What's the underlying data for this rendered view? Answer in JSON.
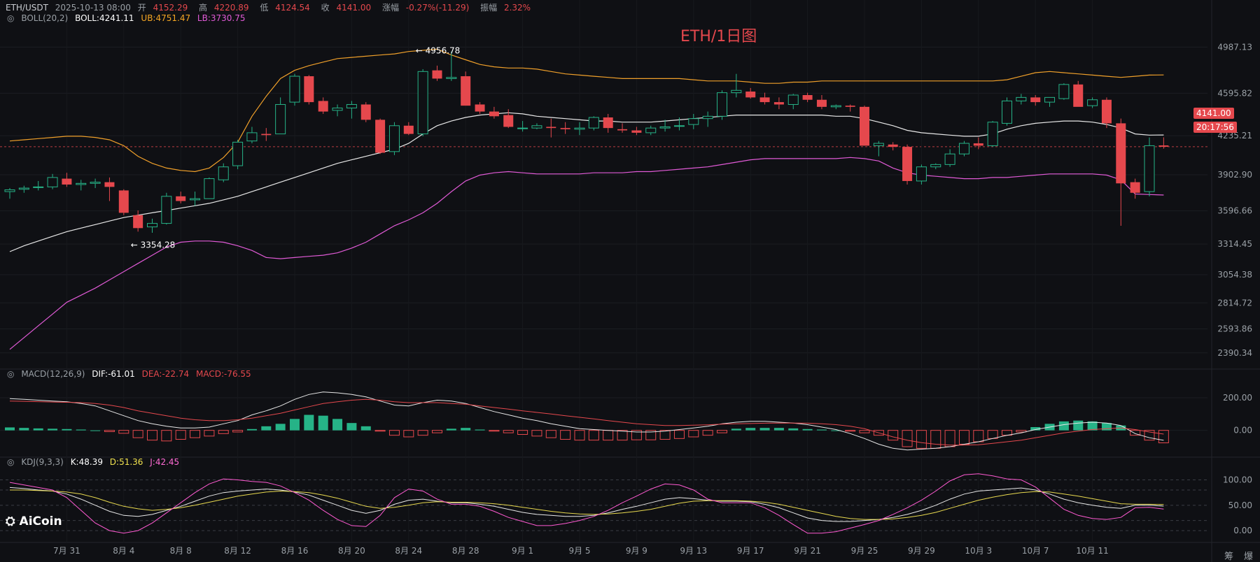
{
  "header": {
    "pair": "ETH/USDT",
    "datetime": "2025-10-13 08:00",
    "open_label": "开",
    "open": "4152.29",
    "high_label": "高",
    "high": "4220.89",
    "low_label": "低",
    "low": "4124.54",
    "close_label": "收",
    "close": "4141.00",
    "change_label": "涨幅",
    "change": "-0.27%(-11.29)",
    "amp_label": "振幅",
    "amp": "2.32%"
  },
  "boll": {
    "name": "BOLL(20,2)",
    "boll": "BOLL:4241.11",
    "ub": "UB:4751.47",
    "lb": "LB:3730.75"
  },
  "macd": {
    "name": "MACD(12,26,9)",
    "dif": "DIF:-61.01",
    "dea": "DEA:-22.74",
    "macd": "MACD:-76.55"
  },
  "kdj": {
    "name": "KDJ(9,3,3)",
    "k": "K:48.39",
    "d": "D:51.36",
    "j": "J:42.45"
  },
  "watermark": "ETH/1日图",
  "logo": "AiCoin",
  "price_tag": "4141.00",
  "countdown_tag": "20:17:56",
  "right_labels": [
    "筹",
    "爆"
  ],
  "colors": {
    "up": "#26b387",
    "down": "#e5484d",
    "boll_mid": "#e8e8e8",
    "boll_up": "#f0a02a",
    "boll_low": "#e05ad6",
    "dif": "#e8e8e8",
    "dea": "#e5484d",
    "k": "#e8e8e8",
    "d": "#e8d94f",
    "j": "#ff5ad2"
  },
  "chart_data": {
    "type": "candlestick",
    "interval": "1D",
    "price_axis": {
      "ticks": [
        "4987.13",
        "4595.82",
        "4235.21",
        "3902.90",
        "3596.66",
        "3314.45",
        "3054.38",
        "2814.72",
        "2593.86",
        "2390.34"
      ],
      "range": [
        2300,
        5150
      ]
    },
    "macd_axis": {
      "ticks": [
        "200.00",
        "0.00"
      ],
      "range": [
        -130,
        290
      ]
    },
    "kdj_axis": {
      "ticks": [
        "100.00",
        "50.00",
        "0.00"
      ],
      "range": [
        -15,
        120
      ]
    },
    "x_ticks": [
      {
        "i": 4,
        "label": "7月 31"
      },
      {
        "i": 8,
        "label": "8月 4"
      },
      {
        "i": 12,
        "label": "8月 8"
      },
      {
        "i": 16,
        "label": "8月 12"
      },
      {
        "i": 20,
        "label": "8月 16"
      },
      {
        "i": 24,
        "label": "8月 20"
      },
      {
        "i": 28,
        "label": "8月 24"
      },
      {
        "i": 32,
        "label": "8月 28"
      },
      {
        "i": 36,
        "label": "9月 1"
      },
      {
        "i": 40,
        "label": "9月 5"
      },
      {
        "i": 44,
        "label": "9月 9"
      },
      {
        "i": 48,
        "label": "9月 13"
      },
      {
        "i": 52,
        "label": "9月 17"
      },
      {
        "i": 56,
        "label": "9月 21"
      },
      {
        "i": 60,
        "label": "9月 25"
      },
      {
        "i": 64,
        "label": "9月 29"
      },
      {
        "i": 68,
        "label": "10月 3"
      },
      {
        "i": 72,
        "label": "10月 7"
      },
      {
        "i": 76,
        "label": "10月 11"
      }
    ],
    "annotations": [
      {
        "i": 28,
        "price": 4956.78,
        "label": "← 4956.78"
      },
      {
        "i": 8,
        "price": 3354.28,
        "label": "← 3354.28"
      }
    ],
    "candles": [
      [
        3760,
        3790,
        3700,
        3775
      ],
      [
        3780,
        3810,
        3750,
        3790
      ],
      [
        3795,
        3850,
        3770,
        3800
      ],
      [
        3800,
        3910,
        3780,
        3880
      ],
      [
        3870,
        3920,
        3800,
        3820
      ],
      [
        3820,
        3860,
        3770,
        3830
      ],
      [
        3830,
        3870,
        3790,
        3840
      ],
      [
        3840,
        3880,
        3680,
        3800
      ],
      [
        3770,
        3780,
        3560,
        3580
      ],
      [
        3560,
        3600,
        3420,
        3450
      ],
      [
        3460,
        3530,
        3410,
        3490
      ],
      [
        3490,
        3750,
        3480,
        3720
      ],
      [
        3720,
        3760,
        3660,
        3680
      ],
      [
        3690,
        3760,
        3640,
        3700
      ],
      [
        3700,
        3880,
        3700,
        3870
      ],
      [
        3860,
        4000,
        3840,
        3970
      ],
      [
        3980,
        4200,
        3950,
        4180
      ],
      [
        4190,
        4310,
        4170,
        4260
      ],
      [
        4250,
        4300,
        4190,
        4240
      ],
      [
        4250,
        4560,
        4250,
        4500
      ],
      [
        4520,
        4760,
        4490,
        4740
      ],
      [
        4740,
        4750,
        4500,
        4520
      ],
      [
        4530,
        4560,
        4420,
        4440
      ],
      [
        4450,
        4500,
        4400,
        4470
      ],
      [
        4470,
        4530,
        4380,
        4500
      ],
      [
        4500,
        4520,
        4350,
        4370
      ],
      [
        4370,
        4380,
        4080,
        4090
      ],
      [
        4100,
        4350,
        4070,
        4320
      ],
      [
        4320,
        4350,
        4240,
        4250
      ],
      [
        4250,
        4800,
        4230,
        4780
      ],
      [
        4790,
        4830,
        4700,
        4720
      ],
      [
        4720,
        4950,
        4700,
        4730
      ],
      [
        4740,
        4780,
        4500,
        4490
      ],
      [
        4500,
        4520,
        4420,
        4440
      ],
      [
        4440,
        4480,
        4380,
        4400
      ],
      [
        4410,
        4460,
        4300,
        4310
      ],
      [
        4300,
        4360,
        4270,
        4300
      ],
      [
        4300,
        4340,
        4290,
        4320
      ],
      [
        4310,
        4380,
        4220,
        4300
      ],
      [
        4300,
        4350,
        4250,
        4290
      ],
      [
        4290,
        4350,
        4240,
        4300
      ],
      [
        4300,
        4400,
        4280,
        4390
      ],
      [
        4390,
        4420,
        4260,
        4300
      ],
      [
        4290,
        4340,
        4260,
        4280
      ],
      [
        4280,
        4310,
        4240,
        4260
      ],
      [
        4260,
        4320,
        4240,
        4300
      ],
      [
        4300,
        4370,
        4270,
        4310
      ],
      [
        4320,
        4390,
        4280,
        4320
      ],
      [
        4330,
        4420,
        4290,
        4380
      ],
      [
        4380,
        4440,
        4310,
        4400
      ],
      [
        4400,
        4620,
        4370,
        4600
      ],
      [
        4600,
        4760,
        4560,
        4620
      ],
      [
        4610,
        4640,
        4550,
        4560
      ],
      [
        4560,
        4600,
        4500,
        4520
      ],
      [
        4520,
        4560,
        4460,
        4500
      ],
      [
        4500,
        4590,
        4460,
        4580
      ],
      [
        4580,
        4600,
        4520,
        4540
      ],
      [
        4540,
        4580,
        4460,
        4480
      ],
      [
        4480,
        4500,
        4460,
        4490
      ],
      [
        4490,
        4500,
        4440,
        4480
      ],
      [
        4480,
        4490,
        4160,
        4150
      ],
      [
        4150,
        4190,
        4060,
        4170
      ],
      [
        4160,
        4180,
        4110,
        4140
      ],
      [
        4140,
        4160,
        3820,
        3850
      ],
      [
        3850,
        3990,
        3820,
        3970
      ],
      [
        3970,
        4000,
        3950,
        3990
      ],
      [
        3990,
        4120,
        3970,
        4080
      ],
      [
        4080,
        4190,
        4060,
        4170
      ],
      [
        4170,
        4220,
        4120,
        4150
      ],
      [
        4150,
        4360,
        4140,
        4350
      ],
      [
        4340,
        4560,
        4320,
        4530
      ],
      [
        4530,
        4590,
        4500,
        4560
      ],
      [
        4560,
        4580,
        4490,
        4520
      ],
      [
        4520,
        4560,
        4480,
        4560
      ],
      [
        4550,
        4680,
        4540,
        4670
      ],
      [
        4670,
        4700,
        4490,
        4480
      ],
      [
        4490,
        4560,
        4470,
        4540
      ],
      [
        4540,
        4560,
        4300,
        4340
      ],
      [
        4340,
        4380,
        3470,
        3830
      ],
      [
        3840,
        3870,
        3700,
        3750
      ],
      [
        3760,
        4220,
        3720,
        4150
      ],
      [
        4152.29,
        4220.89,
        4124.54,
        4141.0
      ]
    ],
    "boll_mid": [
      3250,
      3300,
      3340,
      3380,
      3420,
      3450,
      3480,
      3510,
      3540,
      3560,
      3580,
      3600,
      3620,
      3640,
      3660,
      3690,
      3720,
      3760,
      3800,
      3840,
      3880,
      3920,
      3960,
      4000,
      4030,
      4060,
      4090,
      4120,
      4170,
      4250,
      4320,
      4360,
      4390,
      4410,
      4420,
      4430,
      4420,
      4400,
      4390,
      4380,
      4370,
      4360,
      4360,
      4350,
      4350,
      4350,
      4360,
      4370,
      4380,
      4390,
      4400,
      4410,
      4410,
      4410,
      4410,
      4410,
      4410,
      4410,
      4400,
      4400,
      4380,
      4350,
      4320,
      4280,
      4260,
      4250,
      4240,
      4230,
      4230,
      4250,
      4290,
      4320,
      4340,
      4350,
      4360,
      4360,
      4350,
      4330,
      4300,
      4250,
      4240,
      4241
    ],
    "boll_up": [
      4190,
      4200,
      4210,
      4220,
      4230,
      4230,
      4220,
      4200,
      4150,
      4060,
      4000,
      3960,
      3940,
      3930,
      3960,
      4050,
      4180,
      4400,
      4570,
      4720,
      4790,
      4830,
      4860,
      4890,
      4900,
      4910,
      4920,
      4930,
      4950,
      4960,
      4970,
      4920,
      4880,
      4840,
      4820,
      4810,
      4810,
      4800,
      4780,
      4760,
      4750,
      4740,
      4730,
      4720,
      4720,
      4720,
      4720,
      4720,
      4710,
      4700,
      4700,
      4700,
      4690,
      4680,
      4680,
      4690,
      4690,
      4700,
      4700,
      4700,
      4700,
      4700,
      4700,
      4700,
      4700,
      4700,
      4700,
      4700,
      4700,
      4700,
      4710,
      4740,
      4770,
      4780,
      4770,
      4760,
      4750,
      4740,
      4730,
      4740,
      4750,
      4751
    ],
    "boll_low": [
      2420,
      2520,
      2620,
      2720,
      2820,
      2880,
      2940,
      3010,
      3080,
      3150,
      3220,
      3290,
      3330,
      3340,
      3340,
      3330,
      3300,
      3260,
      3200,
      3190,
      3200,
      3210,
      3220,
      3240,
      3280,
      3330,
      3400,
      3470,
      3520,
      3580,
      3660,
      3760,
      3850,
      3900,
      3920,
      3930,
      3920,
      3910,
      3910,
      3910,
      3910,
      3920,
      3920,
      3920,
      3930,
      3930,
      3940,
      3950,
      3960,
      3970,
      3990,
      4010,
      4030,
      4040,
      4040,
      4040,
      4040,
      4040,
      4040,
      4050,
      4040,
      4020,
      3960,
      3920,
      3900,
      3890,
      3880,
      3870,
      3870,
      3880,
      3880,
      3890,
      3900,
      3910,
      3910,
      3910,
      3910,
      3900,
      3860,
      3740,
      3735,
      3730.75
    ],
    "macd_hist": [
      18,
      15,
      12,
      10,
      8,
      5,
      0,
      -8,
      -18,
      -45,
      -60,
      -65,
      -55,
      -45,
      -35,
      -20,
      -10,
      8,
      25,
      40,
      70,
      95,
      90,
      70,
      45,
      25,
      -5,
      -30,
      -40,
      -30,
      -15,
      10,
      15,
      5,
      -5,
      -15,
      -25,
      -35,
      -45,
      -55,
      -60,
      -60,
      -60,
      -60,
      -58,
      -58,
      -55,
      -50,
      -40,
      -30,
      -15,
      10,
      15,
      15,
      15,
      12,
      8,
      5,
      0,
      -5,
      -15,
      -30,
      -60,
      -100,
      -110,
      -110,
      -100,
      -85,
      -70,
      -50,
      -30,
      -10,
      20,
      40,
      55,
      60,
      55,
      45,
      30,
      -30,
      -60,
      -76.55
    ],
    "dif": [
      195,
      190,
      185,
      180,
      175,
      165,
      150,
      120,
      90,
      60,
      40,
      25,
      15,
      15,
      20,
      40,
      60,
      95,
      120,
      150,
      190,
      220,
      235,
      230,
      220,
      205,
      180,
      155,
      150,
      170,
      185,
      180,
      165,
      140,
      115,
      95,
      75,
      60,
      40,
      25,
      10,
      5,
      0,
      -5,
      -10,
      -10,
      -5,
      5,
      15,
      25,
      40,
      50,
      55,
      55,
      50,
      45,
      35,
      20,
      5,
      -20,
      -50,
      -85,
      -110,
      -120,
      -115,
      -110,
      -100,
      -85,
      -70,
      -50,
      -30,
      -15,
      5,
      20,
      35,
      45,
      50,
      45,
      30,
      -20,
      -45,
      -61.01
    ],
    "dea": [
      180,
      178,
      176,
      174,
      172,
      170,
      165,
      155,
      140,
      120,
      105,
      90,
      75,
      65,
      60,
      60,
      65,
      75,
      90,
      105,
      125,
      145,
      165,
      175,
      185,
      190,
      185,
      175,
      170,
      170,
      170,
      165,
      160,
      150,
      140,
      130,
      120,
      110,
      100,
      90,
      80,
      70,
      60,
      50,
      40,
      35,
      30,
      30,
      32,
      34,
      38,
      40,
      42,
      44,
      45,
      45,
      44,
      40,
      35,
      25,
      10,
      -15,
      -40,
      -60,
      -75,
      -85,
      -90,
      -90,
      -88,
      -80,
      -70,
      -60,
      -45,
      -30,
      -15,
      -5,
      5,
      10,
      15,
      5,
      -10,
      -22.74
    ],
    "kdj_k": [
      85,
      83,
      80,
      78,
      72,
      62,
      50,
      38,
      30,
      28,
      32,
      40,
      48,
      58,
      68,
      75,
      78,
      80,
      82,
      80,
      76,
      70,
      60,
      50,
      40,
      34,
      40,
      52,
      60,
      62,
      58,
      55,
      55,
      52,
      48,
      42,
      36,
      32,
      30,
      28,
      28,
      30,
      35,
      42,
      48,
      55,
      62,
      65,
      63,
      60,
      58,
      58,
      57,
      52,
      45,
      35,
      25,
      20,
      18,
      18,
      20,
      22,
      26,
      32,
      40,
      50,
      62,
      72,
      78,
      80,
      82,
      84,
      80,
      72,
      62,
      55,
      50,
      46,
      44,
      50,
      50,
      48.39
    ],
    "kdj_d": [
      80,
      80,
      79,
      78,
      76,
      72,
      65,
      56,
      48,
      43,
      40,
      42,
      45,
      50,
      56,
      62,
      68,
      72,
      76,
      78,
      77,
      75,
      70,
      64,
      56,
      48,
      44,
      46,
      50,
      55,
      57,
      56,
      56,
      55,
      53,
      50,
      46,
      42,
      38,
      35,
      33,
      32,
      33,
      35,
      38,
      42,
      48,
      54,
      58,
      59,
      59,
      59,
      58,
      56,
      52,
      46,
      40,
      34,
      28,
      24,
      22,
      22,
      23,
      26,
      30,
      36,
      44,
      52,
      60,
      66,
      71,
      75,
      77,
      76,
      72,
      68,
      63,
      58,
      53,
      52,
      52,
      51.36
    ],
    "kdj_j": [
      95,
      90,
      85,
      80,
      65,
      40,
      15,
      0,
      -5,
      0,
      15,
      35,
      55,
      75,
      92,
      102,
      100,
      97,
      95,
      88,
      75,
      60,
      40,
      22,
      10,
      8,
      30,
      65,
      82,
      78,
      62,
      52,
      52,
      48,
      38,
      26,
      18,
      10,
      10,
      14,
      20,
      28,
      40,
      55,
      68,
      82,
      92,
      90,
      80,
      62,
      55,
      55,
      55,
      45,
      30,
      12,
      -5,
      -5,
      -2,
      5,
      12,
      20,
      32,
      45,
      60,
      78,
      98,
      110,
      112,
      108,
      102,
      100,
      86,
      64,
      42,
      30,
      24,
      22,
      26,
      45,
      46,
      42.45
    ]
  }
}
